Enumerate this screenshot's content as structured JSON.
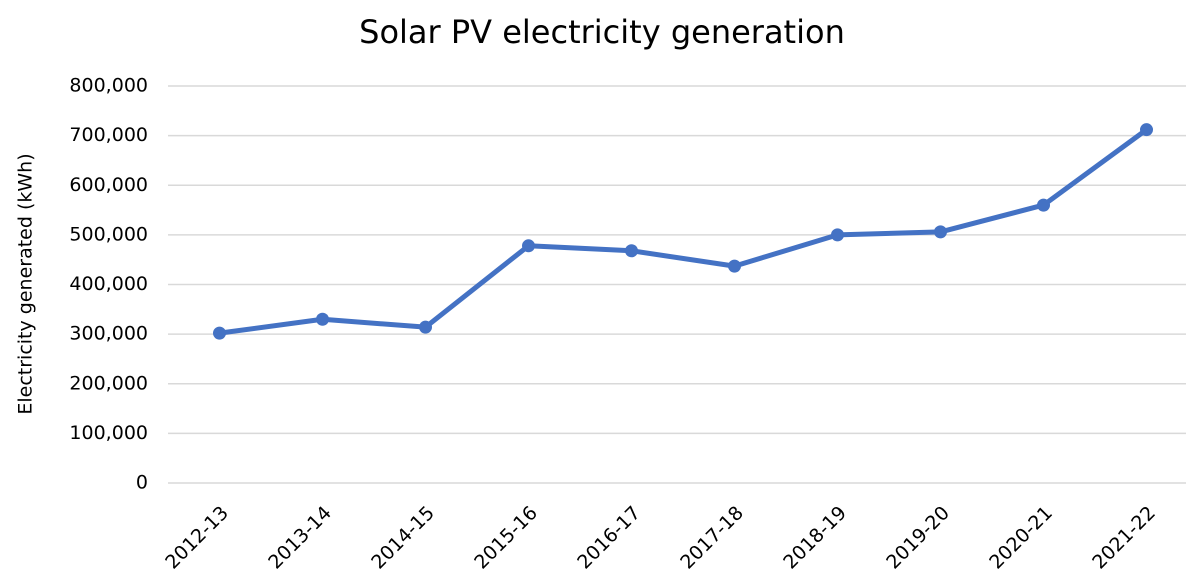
{
  "chart_data": {
    "type": "line",
    "title": "Solar PV electricity generation",
    "y_label": "Electricity generated (kWh)",
    "categories": [
      "2012-13",
      "2013-14",
      "2014-15",
      "2015-16",
      "2016-17",
      "2017-18",
      "2018-19",
      "2019-20",
      "2020-21",
      "2021-22"
    ],
    "series": [
      {
        "name": "Solar PV",
        "color": "#4472c4",
        "values": [
          302000,
          330000,
          314000,
          478000,
          468000,
          437000,
          500000,
          506000,
          560000,
          712000
        ]
      }
    ],
    "ylim": [
      0,
      800000
    ],
    "yticks": [
      0,
      {
        "value": 100000,
        "label": "100,000"
      },
      {
        "value": 200000,
        "label": "200,000"
      },
      {
        "value": 300000,
        "label": "300,000"
      },
      {
        "value": 400000,
        "label": "400,000"
      },
      {
        "value": 500000,
        "label": "500,000"
      },
      {
        "value": 600000,
        "label": "600,000"
      },
      {
        "value": 700000,
        "label": "700,000"
      },
      {
        "value": 800000,
        "label": "800,000"
      }
    ],
    "grid": true
  }
}
